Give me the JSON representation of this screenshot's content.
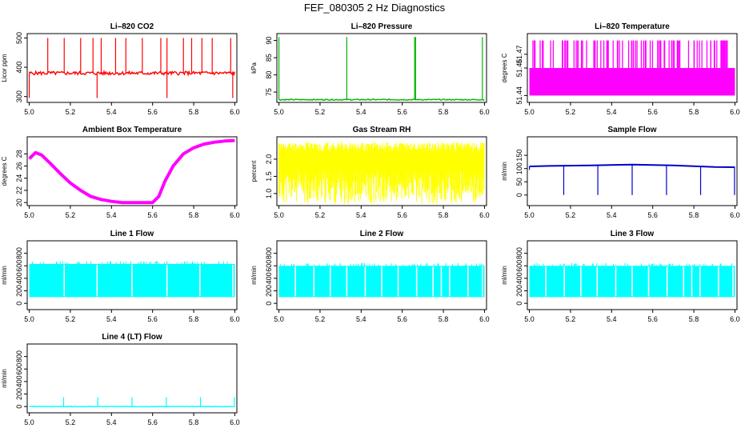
{
  "page": {
    "title": "FEF_080305  2 Hz Diagnostics"
  },
  "chart_data": [
    {
      "type": "line",
      "title": "Li–820 CO2",
      "ylabel": "Licor ppm",
      "color": "#ff0000",
      "xlim": [
        4.99,
        6.01
      ],
      "ylim": [
        280,
        515
      ],
      "xticks": [
        5.0,
        5.2,
        5.4,
        5.6,
        5.8,
        6.0
      ],
      "xticklabels": [
        "5.0",
        "5.2",
        "5.4",
        "5.6",
        "5.8",
        "6.0"
      ],
      "yticks": [
        300,
        400,
        500
      ],
      "yticklabels": [
        "300",
        "400",
        "500"
      ],
      "series": [
        {
          "name": "CO2",
          "baseline": 380,
          "band": 12,
          "spikes_up_x": [
            5.09,
            5.17,
            5.25,
            5.31,
            5.35,
            5.42,
            5.47,
            5.55,
            5.64,
            5.67,
            5.75,
            5.79,
            5.84,
            5.89,
            5.98
          ],
          "spike_up_value": 500,
          "spikes_down_x": [
            5.0,
            5.33,
            5.67,
            5.99
          ],
          "spike_down_value": 295
        }
      ]
    },
    {
      "type": "line",
      "title": "Li–820 Pressure",
      "ylabel": "kPa",
      "color": "#00b400",
      "xlim": [
        4.99,
        6.01
      ],
      "ylim": [
        72.0,
        92.0
      ],
      "xticks": [
        5.0,
        5.2,
        5.4,
        5.6,
        5.8,
        6.0
      ],
      "xticklabels": [
        "5.0",
        "5.2",
        "5.4",
        "5.6",
        "5.8",
        "6.0"
      ],
      "yticks": [
        75,
        80,
        85,
        90
      ],
      "yticklabels": [
        "75",
        "80",
        "85",
        "90"
      ],
      "series": [
        {
          "name": "Pressure",
          "baseline": 72.8,
          "band": 0.3,
          "spikes_up_x": [
            5.0,
            5.33,
            5.66,
            5.665,
            5.99
          ],
          "spike_up_value": 91,
          "spikes_down_x": [],
          "spike_down_value": 72.8
        }
      ]
    },
    {
      "type": "bar",
      "title": "Li–820 Temperature",
      "ylabel": "degrees C",
      "color": "#ff00ff",
      "xlim": [
        4.99,
        6.01
      ],
      "ylim": [
        51.435,
        51.485
      ],
      "xticks": [
        5.0,
        5.2,
        5.4,
        5.6,
        5.8,
        6.0
      ],
      "xticklabels": [
        "5.0",
        "5.2",
        "5.4",
        "5.6",
        "5.8",
        "6.0"
      ],
      "yticks": [
        51.44,
        51.46,
        51.47
      ],
      "yticklabels": [
        "51.44",
        "51.46",
        "51.47"
      ],
      "series": [
        {
          "name": "Temperature",
          "low": 51.44,
          "mid": 51.46,
          "high": 51.48,
          "seed": 3
        }
      ]
    },
    {
      "type": "line",
      "title": "Ambient Box Temperature",
      "ylabel": "degrees C",
      "color": "#ff00ff",
      "xlim": [
        4.99,
        6.01
      ],
      "ylim": [
        19.5,
        30.8
      ],
      "xticks": [
        5.0,
        5.2,
        5.4,
        5.6,
        5.8,
        6.0
      ],
      "xticklabels": [
        "5.0",
        "5.2",
        "5.4",
        "5.6",
        "5.8",
        "6.0"
      ],
      "yticks": [
        20,
        22,
        24,
        26,
        28
      ],
      "yticklabels": [
        "20",
        "22",
        "24",
        "26",
        "28"
      ],
      "series": [
        {
          "name": "Ambient",
          "points": [
            [
              5.0,
              27.2
            ],
            [
              5.03,
              28.2
            ],
            [
              5.06,
              27.8
            ],
            [
              5.1,
              26.5
            ],
            [
              5.15,
              24.8
            ],
            [
              5.2,
              23.2
            ],
            [
              5.25,
              22.0
            ],
            [
              5.3,
              21.0
            ],
            [
              5.35,
              20.5
            ],
            [
              5.4,
              20.2
            ],
            [
              5.45,
              20.0
            ],
            [
              5.5,
              20.0
            ],
            [
              5.55,
              20.0
            ],
            [
              5.6,
              20.0
            ],
            [
              5.63,
              21.0
            ],
            [
              5.66,
              23.5
            ],
            [
              5.7,
              26.0
            ],
            [
              5.75,
              28.0
            ],
            [
              5.8,
              29.0
            ],
            [
              5.85,
              29.6
            ],
            [
              5.9,
              29.9
            ],
            [
              5.95,
              30.1
            ],
            [
              6.0,
              30.2
            ]
          ]
        }
      ]
    },
    {
      "type": "bar",
      "title": "Gas Stream RH",
      "ylabel": "percent",
      "color": "#ffff00",
      "xlim": [
        4.99,
        6.01
      ],
      "ylim": [
        0.65,
        2.65
      ],
      "xticks": [
        5.0,
        5.2,
        5.4,
        5.6,
        5.8,
        6.0
      ],
      "xticklabels": [
        "5.0",
        "5.2",
        "5.4",
        "5.6",
        "5.8",
        "6.0"
      ],
      "yticks": [
        1.0,
        1.5,
        2.0
      ],
      "yticklabels": [
        "1.0",
        "1.5",
        "2.0"
      ],
      "series": [
        {
          "name": "RH",
          "top_min": 2.2,
          "top_max": 2.5,
          "bottom_min": 0.7,
          "bottom_max": 1.7,
          "seed": 11
        }
      ]
    },
    {
      "type": "line",
      "title": "Sample Flow",
      "ylabel": "ml/min",
      "color": "#0000cc",
      "xlim": [
        4.99,
        6.01
      ],
      "ylim": [
        -40,
        220
      ],
      "xticks": [
        5.0,
        5.2,
        5.4,
        5.6,
        5.8,
        6.0
      ],
      "xticklabels": [
        "5.0",
        "5.2",
        "5.4",
        "5.6",
        "5.8",
        "6.0"
      ],
      "yticks": [
        0,
        50,
        100,
        150
      ],
      "yticklabels": [
        "0",
        "50",
        "100",
        "150"
      ],
      "series": [
        {
          "name": "Sample",
          "points": [
            [
              5.0,
              108
            ],
            [
              5.1,
              110
            ],
            [
              5.3,
              112
            ],
            [
              5.5,
              115
            ],
            [
              5.7,
              112
            ],
            [
              5.9,
              106
            ],
            [
              6.0,
              105
            ]
          ],
          "dips_x": [
            5.167,
            5.333,
            5.5,
            5.667,
            5.833,
            5.998
          ],
          "dip_value": 0,
          "start_dip_value": 95
        }
      ]
    },
    {
      "type": "bar",
      "title": "Line 1 Flow",
      "ylabel": "ml/min",
      "color": "#00ffff",
      "xlim": [
        4.99,
        6.01
      ],
      "ylim": [
        -100,
        1000
      ],
      "xticks": [
        5.0,
        5.2,
        5.4,
        5.6,
        5.8,
        6.0
      ],
      "xticklabels": [
        "5.0",
        "5.2",
        "5.4",
        "5.6",
        "5.8",
        "6.0"
      ],
      "yticks": [
        0,
        200,
        400,
        600,
        800
      ],
      "yticklabels": [
        "0",
        "200",
        "400",
        "600",
        "800"
      ],
      "series": [
        {
          "name": "Line 1",
          "low": 100,
          "high": 630,
          "gaps_x": [
            5.17,
            5.33,
            5.5,
            5.67,
            5.83,
            5.99
          ]
        }
      ]
    },
    {
      "type": "bar",
      "title": "Line 2 Flow",
      "ylabel": "ml/min",
      "color": "#00ffff",
      "xlim": [
        4.99,
        6.01
      ],
      "ylim": [
        -100,
        1000
      ],
      "xticks": [
        5.0,
        5.2,
        5.4,
        5.6,
        5.8,
        6.0
      ],
      "xticklabels": [
        "5.0",
        "5.2",
        "5.4",
        "5.6",
        "5.8",
        "6.0"
      ],
      "yticks": [
        0,
        200,
        400,
        600,
        800
      ],
      "yticklabels": [
        "0",
        "200",
        "400",
        "600",
        "800"
      ],
      "series": [
        {
          "name": "Line 2",
          "low": 100,
          "high": 600,
          "gaps_x": [
            5.08,
            5.17,
            5.25,
            5.33,
            5.42,
            5.5,
            5.58,
            5.67,
            5.75,
            5.79,
            5.83,
            5.92,
            5.99
          ]
        }
      ]
    },
    {
      "type": "bar",
      "title": "Line 3 Flow",
      "ylabel": "ml/min",
      "color": "#00ffff",
      "xlim": [
        4.99,
        6.01
      ],
      "ylim": [
        -100,
        1000
      ],
      "xticks": [
        5.0,
        5.2,
        5.4,
        5.6,
        5.8,
        6.0
      ],
      "xticklabels": [
        "5.0",
        "5.2",
        "5.4",
        "5.6",
        "5.8",
        "6.0"
      ],
      "yticks": [
        0,
        200,
        400,
        600,
        800
      ],
      "yticklabels": [
        "0",
        "200",
        "400",
        "600",
        "800"
      ],
      "series": [
        {
          "name": "Line 3",
          "low": 100,
          "high": 600,
          "gaps_x": [
            5.08,
            5.17,
            5.25,
            5.33,
            5.42,
            5.5,
            5.58,
            5.67,
            5.75,
            5.79,
            5.83,
            5.92,
            5.99
          ]
        }
      ]
    },
    {
      "type": "line",
      "title": "Line 4 (LT) Flow",
      "ylabel": "ml/min",
      "color": "#00ffff",
      "xlim": [
        4.99,
        6.01
      ],
      "ylim": [
        -100,
        1000
      ],
      "xticks": [
        5.0,
        5.2,
        5.4,
        5.6,
        5.8,
        6.0
      ],
      "xticklabels": [
        "5.0",
        "5.2",
        "5.4",
        "5.6",
        "5.8",
        "6.0"
      ],
      "yticks": [
        0,
        200,
        400,
        600,
        800
      ],
      "yticklabels": [
        "0",
        "200",
        "400",
        "600",
        "800"
      ],
      "series": [
        {
          "name": "Line 4",
          "baseline": 0,
          "band": 8,
          "spikes_up_x": [
            5.167,
            5.333,
            5.5,
            5.667,
            5.833,
            5.998
          ],
          "spike_up_value": 150,
          "spikes_down_x": [],
          "spike_down_value": 0
        }
      ]
    }
  ]
}
